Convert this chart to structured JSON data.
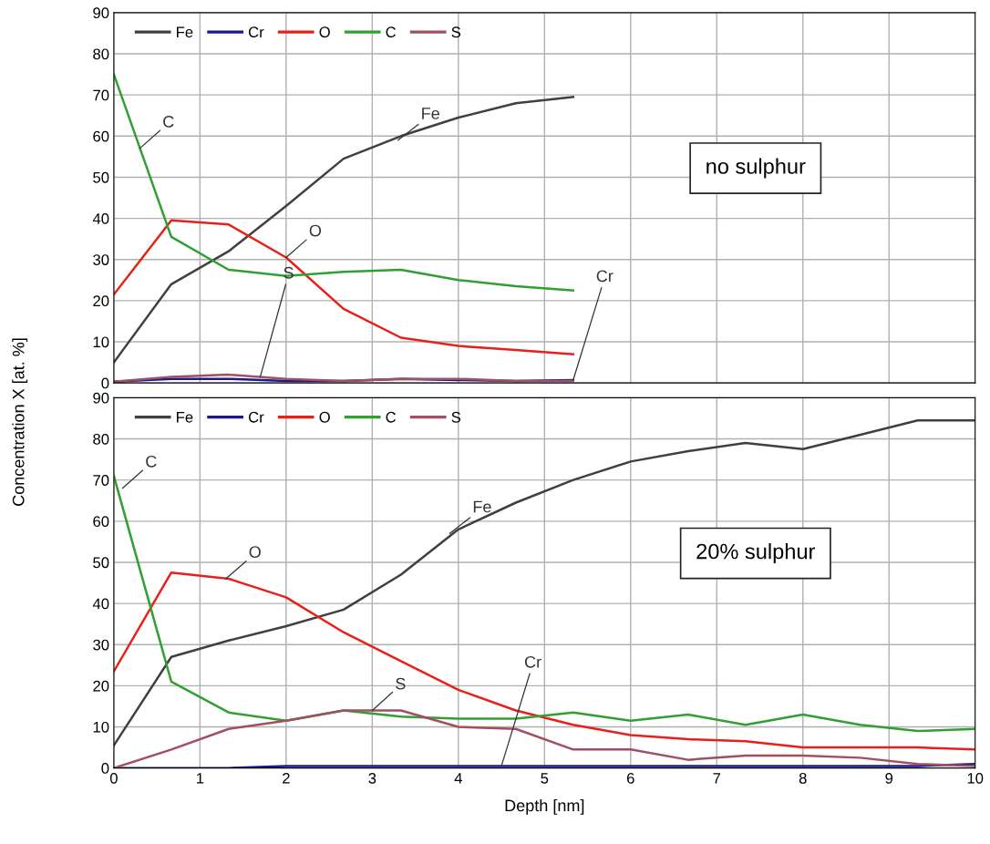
{
  "chart_data": [
    {
      "type": "line",
      "ylabel": "Concentration X [at. %]",
      "x": [
        0,
        0.667,
        1.333,
        2,
        2.667,
        3.333,
        4,
        4.667,
        5.333
      ],
      "series": [
        {
          "name": "Fe",
          "color": "#404040",
          "values": [
            5,
            24,
            32,
            43,
            54.5,
            60,
            64.5,
            68,
            69.5
          ]
        },
        {
          "name": "Cr",
          "color": "#1a1a8c",
          "values": [
            0.3,
            1,
            1,
            0.5,
            0.5,
            1,
            0.7,
            0.5,
            0.7
          ]
        },
        {
          "name": "O",
          "color": "#e8201a",
          "values": [
            21.5,
            39.5,
            38.5,
            30.5,
            18,
            11,
            9,
            8,
            7
          ]
        },
        {
          "name": "C",
          "color": "#30a030",
          "values": [
            75,
            35.5,
            27.5,
            26,
            27,
            27.5,
            25,
            23.5,
            22.5
          ]
        },
        {
          "name": "S",
          "color": "#a05060",
          "values": [
            0.3,
            1.5,
            2,
            1,
            0.5,
            1,
            1,
            0.5,
            0.5
          ]
        }
      ],
      "annotations": [
        {
          "text": "C",
          "x": 0.3,
          "y": 57
        },
        {
          "text": "Fe",
          "x": 3.3,
          "y": 59
        },
        {
          "text": "O",
          "x": 2.0,
          "y": 30.5
        },
        {
          "text": "S",
          "x": 1.7,
          "y": 1.5
        },
        {
          "text": "Cr",
          "x": 5.333,
          "y": 0.7
        },
        "no sulphur"
      ],
      "xlim": [
        0,
        10
      ],
      "xticks": [
        0,
        1,
        2,
        3,
        4,
        5,
        6,
        7,
        8,
        9,
        10
      ],
      "ylim": [
        0,
        90
      ],
      "yticks": [
        0,
        10,
        20,
        30,
        40,
        50,
        60,
        70,
        80,
        90
      ],
      "tick_labels": "y",
      "grid": true,
      "legend": "top left"
    },
    {
      "type": "line",
      "xlabel": "Depth [nm]",
      "x": [
        0,
        0.667,
        1.333,
        2,
        2.667,
        3.333,
        4,
        4.667,
        5.333,
        6,
        6.667,
        7.333,
        8,
        8.667,
        9.333,
        10
      ],
      "series": [
        {
          "name": "Fe",
          "color": "#404040",
          "values": [
            5.5,
            27,
            31,
            34.5,
            38.5,
            47,
            58,
            64.5,
            70,
            74.5,
            77,
            79,
            77.5,
            81,
            84.5,
            84.5
          ]
        },
        {
          "name": "Cr",
          "color": "#1a1a8c",
          "values": [
            0,
            0,
            0,
            0.5,
            0.5,
            0.5,
            0.5,
            0.5,
            0.5,
            0.5,
            0.5,
            0.5,
            0.5,
            0.5,
            0.5,
            1
          ]
        },
        {
          "name": "O",
          "color": "#e8201a",
          "values": [
            23.5,
            47.5,
            46,
            41.5,
            33,
            26,
            19,
            14,
            10.5,
            8,
            7,
            6.5,
            5,
            5,
            5,
            4.5
          ]
        },
        {
          "name": "C",
          "color": "#30a030",
          "values": [
            71,
            21,
            13.5,
            11.5,
            14,
            12.5,
            12,
            12,
            13.5,
            11.5,
            13,
            10.5,
            13,
            10.5,
            9,
            9.5
          ]
        },
        {
          "name": "S",
          "color": "#a05060",
          "values": [
            0,
            4.5,
            9.5,
            11.5,
            14,
            14,
            10,
            9.5,
            4.5,
            4.5,
            2,
            3,
            3,
            2.5,
            1,
            0.5
          ]
        }
      ],
      "annotations": [
        {
          "text": "C",
          "x": 0.1,
          "y": 68
        },
        {
          "text": "O",
          "x": 1.3,
          "y": 46
        },
        {
          "text": "Fe",
          "x": 3.9,
          "y": 57
        },
        {
          "text": "S",
          "x": 3.0,
          "y": 14
        },
        {
          "text": "Cr",
          "x": 4.5,
          "y": 0.5
        },
        "20% sulphur"
      ],
      "xlim": [
        0,
        10
      ],
      "xticks": [
        0,
        1,
        2,
        3,
        4,
        5,
        6,
        7,
        8,
        9,
        10
      ],
      "ylim": [
        0,
        90
      ],
      "yticks": [
        0,
        10,
        20,
        30,
        40,
        50,
        60,
        70,
        80,
        90
      ],
      "grid": true,
      "legend": "top left"
    }
  ]
}
